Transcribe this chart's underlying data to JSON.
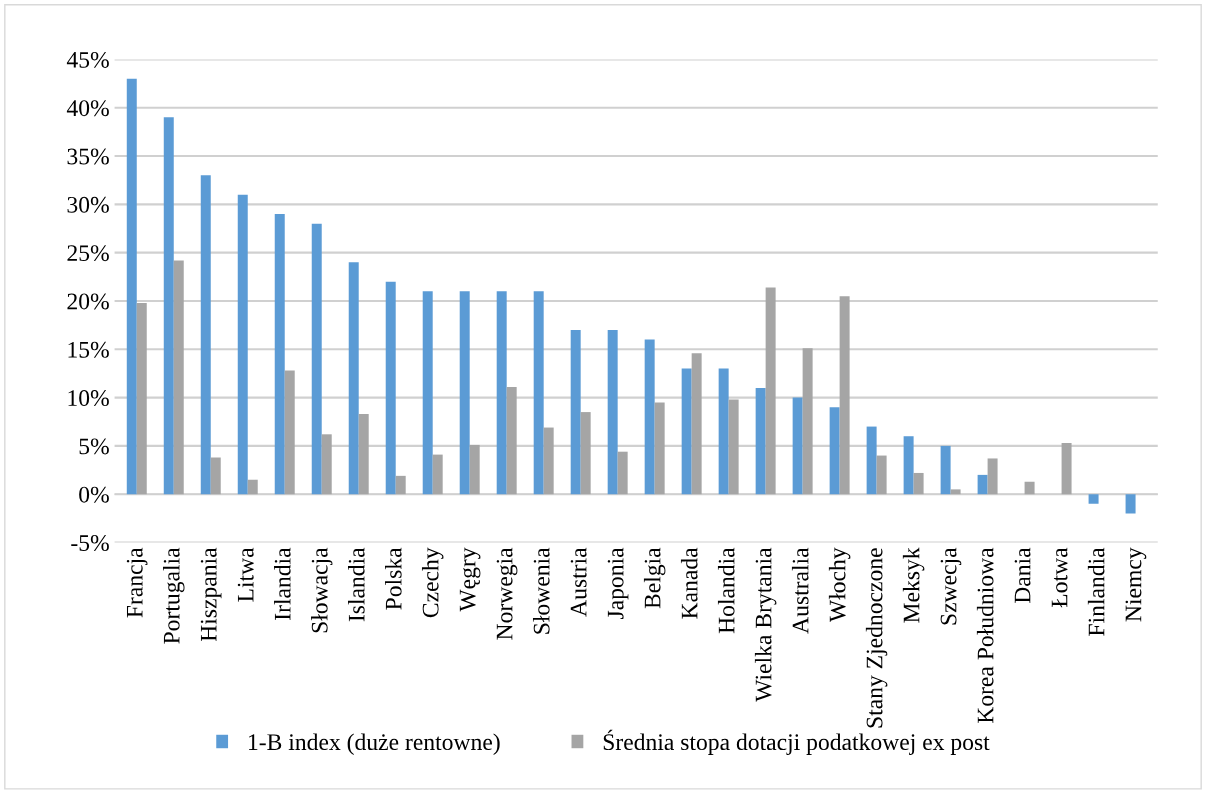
{
  "chart_data": {
    "type": "bar",
    "categories": [
      "Francja",
      "Portugalia",
      "Hiszpania",
      "Litwa",
      "Irlandia",
      "Słowacja",
      "Islandia",
      "Polska",
      "Czechy",
      "Węgry",
      "Norwegia",
      "Słowenia",
      "Austria",
      "Japonia",
      "Belgia",
      "Kanada",
      "Holandia",
      "Wielka Brytania",
      "Australia",
      "Włochy",
      "Stany Zjednoczone",
      "Meksyk",
      "Szwecja",
      "Korea Południowa",
      "Dania",
      "Łotwa",
      "Finlandia",
      "Niemcy"
    ],
    "series": [
      {
        "name": "1-B index (duże rentowne)",
        "color": "#5b9bd5",
        "values": [
          43,
          39,
          33,
          31,
          29,
          28,
          24,
          22,
          21,
          21,
          21,
          21,
          17,
          17,
          16,
          13,
          13,
          11,
          10,
          9,
          7,
          6,
          5,
          2,
          0,
          0,
          -1,
          -2
        ]
      },
      {
        "name": "Średnia stopa dotacji podatkowej ex post",
        "color": "#a5a5a5",
        "values": [
          19.8,
          24.2,
          3.8,
          1.5,
          12.8,
          6.2,
          8.3,
          1.9,
          4.1,
          5.1,
          11.1,
          6.9,
          8.5,
          4.4,
          9.5,
          14.6,
          9.8,
          21.4,
          15.1,
          20.5,
          4.0,
          2.2,
          0.5,
          3.7,
          1.3,
          5.3,
          0,
          0
        ]
      }
    ],
    "ylim": [
      -5,
      45
    ],
    "yticks": [
      {
        "value": -5,
        "label": "-5%"
      },
      {
        "value": 0,
        "label": "0%"
      },
      {
        "value": 5,
        "label": "5%"
      },
      {
        "value": 10,
        "label": "10%"
      },
      {
        "value": 15,
        "label": "15%"
      },
      {
        "value": 20,
        "label": "20%"
      },
      {
        "value": 25,
        "label": "25%"
      },
      {
        "value": 30,
        "label": "30%"
      },
      {
        "value": 35,
        "label": "35%"
      },
      {
        "value": 40,
        "label": "40%"
      },
      {
        "value": 45,
        "label": "45%"
      }
    ],
    "grid": "y",
    "legend": "bottom"
  }
}
